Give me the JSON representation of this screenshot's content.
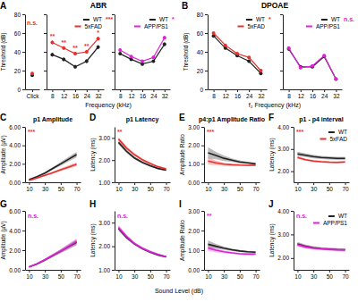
{
  "chart_data": [
    {
      "type": "line",
      "panel": "A",
      "ylabel": "Threshold (dB)",
      "categories": [
        "Click"
      ],
      "ylim": [
        0,
        80
      ],
      "yticks": [
        0,
        20,
        40,
        60,
        80
      ],
      "annotation": "n.s.",
      "series": [
        {
          "name": "WT",
          "color": "#222222",
          "marker": "circle",
          "values": [
            15
          ],
          "errors": [
            1.5
          ]
        },
        {
          "name": "5xFAD",
          "color": "#e8312f",
          "marker": "circle",
          "values": [
            17
          ],
          "errors": [
            1.5
          ]
        }
      ]
    },
    {
      "type": "line",
      "title": "ABR",
      "xlabel": "Frequency (kHz)",
      "categories": [
        "8",
        "12",
        "16",
        "24",
        "32"
      ],
      "ylim": [
        0,
        80
      ],
      "yticks": [
        0,
        20,
        40,
        60,
        80
      ],
      "tick_labels": "x",
      "legend": "upper right",
      "annotation": "***",
      "point_annotations": [
        "**",
        "**",
        "**",
        "**",
        "*"
      ],
      "series": [
        {
          "name": "WT",
          "color": "#222222",
          "marker": "circle",
          "values": [
            37,
            32,
            24,
            30,
            45
          ],
          "errors": [
            2,
            2,
            2,
            2,
            2
          ]
        },
        {
          "name": "5xFAD",
          "color": "#e8312f",
          "marker": "circle",
          "values": [
            50,
            44,
            38,
            40,
            54
          ],
          "errors": [
            2,
            2,
            2,
            2,
            2
          ]
        }
      ]
    },
    {
      "type": "line",
      "categories": [
        "8",
        "12",
        "16",
        "24",
        "32"
      ],
      "ylim": [
        0,
        80
      ],
      "yticks": [
        0,
        20,
        40,
        60,
        80
      ],
      "tick_labels": "x",
      "legend": "upper right",
      "annotation": "*",
      "series": [
        {
          "name": "WT",
          "color": "#222222",
          "marker": "circle",
          "values": [
            38,
            32,
            27,
            30,
            48
          ],
          "errors": [
            1.5,
            1.5,
            1.5,
            1.5,
            2
          ]
        },
        {
          "name": "APP/PS1",
          "color": "#e020d8",
          "marker": "circle",
          "values": [
            42,
            35,
            30,
            34,
            55
          ],
          "errors": [
            1.5,
            1.5,
            1.5,
            1.5,
            2
          ]
        }
      ]
    },
    {
      "type": "line",
      "panel": "B",
      "title": "DPOAE",
      "ylabel": "Threshold (dB)",
      "xlabel": "f₂ Frequency (kHz)",
      "categories": [
        "8",
        "12",
        "16",
        "24",
        "32"
      ],
      "ylim": [
        0,
        80
      ],
      "yticks": [
        0,
        20,
        40,
        60,
        80
      ],
      "legend": "upper right",
      "annotation": "*",
      "series": [
        {
          "name": "WT",
          "color": "#222222",
          "marker": "circle",
          "values": [
            57,
            44,
            36,
            30,
            17
          ],
          "errors": [
            1.5,
            1.5,
            1.5,
            1.5,
            1.5
          ]
        },
        {
          "name": "5xFAD",
          "color": "#e8312f",
          "marker": "circle",
          "values": [
            60,
            47,
            38,
            34,
            20
          ],
          "errors": [
            1.5,
            1.5,
            1.5,
            1.5,
            1.5
          ]
        }
      ]
    },
    {
      "type": "line",
      "categories": [
        "8",
        "12",
        "16",
        "24",
        "32"
      ],
      "ylim": [
        0,
        80
      ],
      "yticks": [
        0,
        20,
        40,
        60,
        80
      ],
      "tick_labels": "x",
      "legend": "upper right",
      "annotation": "n.s.",
      "series": [
        {
          "name": "WT",
          "color": "#222222",
          "marker": "circle",
          "values": [
            43,
            24,
            24,
            35,
            11
          ],
          "errors": [
            1.5,
            1.5,
            1.5,
            1.5,
            1
          ]
        },
        {
          "name": "APP/PS1",
          "color": "#e020d8",
          "marker": "circle",
          "values": [
            44,
            23,
            25,
            36,
            11
          ],
          "errors": [
            1.5,
            1.5,
            1.5,
            1.5,
            1
          ]
        }
      ]
    },
    {
      "type": "line",
      "panel": "C",
      "title": "p1 Amplitude",
      "ylabel": "Amplitude (µV)",
      "x": [
        10,
        20,
        30,
        40,
        50,
        60,
        70
      ],
      "xlim": [
        5,
        75
      ],
      "xticks": [
        10,
        30,
        50,
        70
      ],
      "ylim": [
        0,
        6
      ],
      "yticks": [
        {
          "value": 0,
          "label": "0.00"
        },
        {
          "value": 2,
          "label": "2.00"
        },
        {
          "value": 4,
          "label": "4.00"
        },
        {
          "value": 6,
          "label": "6.00"
        }
      ],
      "annotation": "***",
      "series": [
        {
          "name": "WT",
          "color": "#222222",
          "values": [
            0.3,
            0.6,
            1.0,
            1.5,
            2.0,
            2.5,
            3.0
          ],
          "errors": [
            0.05,
            0.08,
            0.12,
            0.15,
            0.2,
            0.25,
            0.3
          ]
        },
        {
          "name": "5xFAD",
          "color": "#e8312f",
          "values": [
            0.2,
            0.45,
            0.75,
            1.05,
            1.35,
            1.65,
            1.95
          ],
          "errors": [
            0.05,
            0.07,
            0.1,
            0.12,
            0.15,
            0.18,
            0.2
          ]
        }
      ]
    },
    {
      "type": "line",
      "panel": "D",
      "title": "p1 Latency",
      "ylabel": "Latency (ms)",
      "x": [
        10,
        20,
        30,
        40,
        50,
        60,
        70
      ],
      "xlim": [
        5,
        75
      ],
      "xticks": [
        10,
        30,
        50,
        70
      ],
      "ylim": [
        1,
        3.5
      ],
      "yticks": [
        {
          "value": 1,
          "label": "1.00"
        },
        {
          "value": 2,
          "label": "2.00"
        },
        {
          "value": 3,
          "label": "3.00"
        }
      ],
      "annotation": "**",
      "series": [
        {
          "name": "WT",
          "color": "#222222",
          "values": [
            2.8,
            2.4,
            2.1,
            1.9,
            1.75,
            1.62,
            1.55
          ],
          "errors": [
            0.1,
            0.08,
            0.06,
            0.05,
            0.05,
            0.04,
            0.04
          ]
        },
        {
          "name": "5xFAD",
          "color": "#e8312f",
          "values": [
            2.95,
            2.55,
            2.25,
            2.02,
            1.85,
            1.7,
            1.6
          ],
          "errors": [
            0.1,
            0.08,
            0.06,
            0.05,
            0.05,
            0.04,
            0.04
          ]
        }
      ]
    },
    {
      "type": "line",
      "panel": "E",
      "title": "p4:p1 Amplitude Ratio",
      "ylabel": "Amplitude Ratio",
      "x": [
        10,
        20,
        30,
        40,
        50,
        60,
        70
      ],
      "xlim": [
        5,
        75
      ],
      "xticks": [
        10,
        30,
        50,
        70
      ],
      "ylim": [
        0,
        3
      ],
      "yticks": [
        {
          "value": 0,
          "label": "0.00"
        },
        {
          "value": 1,
          "label": "1.00"
        },
        {
          "value": 2,
          "label": "2.00"
        },
        {
          "value": 3,
          "label": "3.00"
        }
      ],
      "annotation": "***",
      "series": [
        {
          "name": "WT",
          "color": "#222222",
          "values": [
            1.6,
            1.45,
            1.3,
            1.2,
            1.1,
            1.05,
            1.0
          ],
          "errors": [
            0.3,
            0.2,
            0.15,
            0.1,
            0.08,
            0.06,
            0.05
          ]
        },
        {
          "name": "5xFAD",
          "color": "#e8312f",
          "values": [
            1.15,
            1.05,
            0.98,
            0.95,
            0.93,
            0.92,
            0.92
          ],
          "errors": [
            0.2,
            0.12,
            0.08,
            0.06,
            0.05,
            0.05,
            0.05
          ]
        }
      ]
    },
    {
      "type": "line",
      "panel": "F",
      "title": "p1 - p4 interval",
      "ylabel": "Latency (ms)",
      "x": [
        10,
        20,
        30,
        40,
        50,
        60,
        70
      ],
      "xlim": [
        5,
        75
      ],
      "xticks": [
        10,
        30,
        50,
        70
      ],
      "ylim": [
        1.5,
        4
      ],
      "yticks": [
        {
          "value": 2,
          "label": "2.00"
        },
        {
          "value": 3,
          "label": "3.00"
        },
        {
          "value": 4,
          "label": "4.00"
        }
      ],
      "annotation": "***",
      "legend": "upper right",
      "series": [
        {
          "name": "WT",
          "color": "#222222",
          "values": [
            2.78,
            2.72,
            2.66,
            2.62,
            2.6,
            2.58,
            2.58
          ],
          "errors": [
            0.1,
            0.08,
            0.08,
            0.07,
            0.07,
            0.07,
            0.07
          ]
        },
        {
          "name": "5xFAD",
          "color": "#e8312f",
          "values": [
            2.62,
            2.52,
            2.46,
            2.43,
            2.41,
            2.4,
            2.42
          ],
          "errors": [
            0.06,
            0.05,
            0.05,
            0.05,
            0.05,
            0.05,
            0.05
          ]
        }
      ]
    },
    {
      "type": "line",
      "panel": "G",
      "ylabel": "Amplitude (µV)",
      "x": [
        10,
        20,
        30,
        40,
        50,
        60,
        70
      ],
      "xlim": [
        5,
        75
      ],
      "xticks": [
        10,
        30,
        50,
        70
      ],
      "ylim": [
        0,
        6
      ],
      "yticks": [
        {
          "value": 0,
          "label": "0.00"
        },
        {
          "value": 2,
          "label": "2.00"
        },
        {
          "value": 4,
          "label": "4.00"
        },
        {
          "value": 6,
          "label": "6.00"
        }
      ],
      "annotation": "n.s.",
      "series": [
        {
          "name": "WT",
          "color": "#222222",
          "values": [
            0.3,
            0.6,
            1.0,
            1.45,
            1.9,
            2.35,
            2.8
          ],
          "errors": [
            0.05,
            0.08,
            0.12,
            0.15,
            0.2,
            0.25,
            0.3
          ]
        },
        {
          "name": "APP/PS1",
          "color": "#e020d8",
          "values": [
            0.3,
            0.62,
            1.02,
            1.48,
            1.92,
            2.4,
            2.9
          ],
          "errors": [
            0.05,
            0.08,
            0.12,
            0.15,
            0.2,
            0.25,
            0.3
          ]
        }
      ]
    },
    {
      "type": "line",
      "panel": "H",
      "ylabel": "Latency (ms)",
      "xlabel": "Sound Level (dB)",
      "x": [
        10,
        20,
        30,
        40,
        50,
        60,
        70
      ],
      "xlim": [
        5,
        75
      ],
      "xticks": [
        10,
        30,
        50,
        70
      ],
      "ylim": [
        1,
        3.5
      ],
      "yticks": [
        {
          "value": 1,
          "label": "1.00"
        },
        {
          "value": 2,
          "label": "2.00"
        },
        {
          "value": 3,
          "label": "3.00"
        }
      ],
      "annotation": "n.s.",
      "series": [
        {
          "name": "WT",
          "color": "#222222",
          "values": [
            2.75,
            2.38,
            2.1,
            1.9,
            1.75,
            1.63,
            1.55
          ],
          "errors": [
            0.1,
            0.08,
            0.06,
            0.05,
            0.05,
            0.04,
            0.04
          ]
        },
        {
          "name": "APP/PS1",
          "color": "#e020d8",
          "values": [
            2.8,
            2.42,
            2.12,
            1.92,
            1.77,
            1.65,
            1.56
          ],
          "errors": [
            0.1,
            0.08,
            0.06,
            0.05,
            0.05,
            0.04,
            0.04
          ]
        }
      ]
    },
    {
      "type": "line",
      "panel": "I",
      "ylabel": "Amplitude Ratio",
      "x": [
        10,
        20,
        30,
        40,
        50,
        60,
        70
      ],
      "xlim": [
        5,
        75
      ],
      "xticks": [
        10,
        30,
        50,
        70
      ],
      "ylim": [
        0,
        3
      ],
      "yticks": [
        {
          "value": 0,
          "label": "0.00"
        },
        {
          "value": 1,
          "label": "1.00"
        },
        {
          "value": 2,
          "label": "2.00"
        },
        {
          "value": 3,
          "label": "3.00"
        }
      ],
      "annotation": "**",
      "series": [
        {
          "name": "WT",
          "color": "#222222",
          "values": [
            1.3,
            1.2,
            1.1,
            1.02,
            0.96,
            0.92,
            0.9
          ],
          "errors": [
            0.2,
            0.12,
            0.08,
            0.06,
            0.05,
            0.05,
            0.05
          ]
        },
        {
          "name": "APP/PS1",
          "color": "#e020d8",
          "values": [
            1.1,
            1.0,
            0.92,
            0.86,
            0.82,
            0.8,
            0.8
          ],
          "errors": [
            0.15,
            0.1,
            0.07,
            0.05,
            0.05,
            0.05,
            0.05
          ]
        }
      ]
    },
    {
      "type": "line",
      "panel": "J",
      "ylabel": "Latency (ms)",
      "x": [
        10,
        20,
        30,
        40,
        50,
        60,
        70
      ],
      "xlim": [
        5,
        75
      ],
      "xticks": [
        10,
        30,
        50,
        70
      ],
      "ylim": [
        1.5,
        4
      ],
      "yticks": [
        {
          "value": 2,
          "label": "2.00"
        },
        {
          "value": 3,
          "label": "3.00"
        },
        {
          "value": 4,
          "label": "4.00"
        }
      ],
      "annotation": "n.s.",
      "legend": "upper right",
      "series": [
        {
          "name": "WT",
          "color": "#222222",
          "values": [
            2.6,
            2.5,
            2.44,
            2.4,
            2.38,
            2.36,
            2.35
          ],
          "errors": [
            0.08,
            0.07,
            0.06,
            0.06,
            0.06,
            0.06,
            0.06
          ]
        },
        {
          "name": "APP/PS1",
          "color": "#e020d8",
          "values": [
            2.56,
            2.47,
            2.42,
            2.39,
            2.37,
            2.35,
            2.34
          ],
          "errors": [
            0.08,
            0.07,
            0.06,
            0.06,
            0.06,
            0.06,
            0.06
          ]
        }
      ]
    }
  ]
}
